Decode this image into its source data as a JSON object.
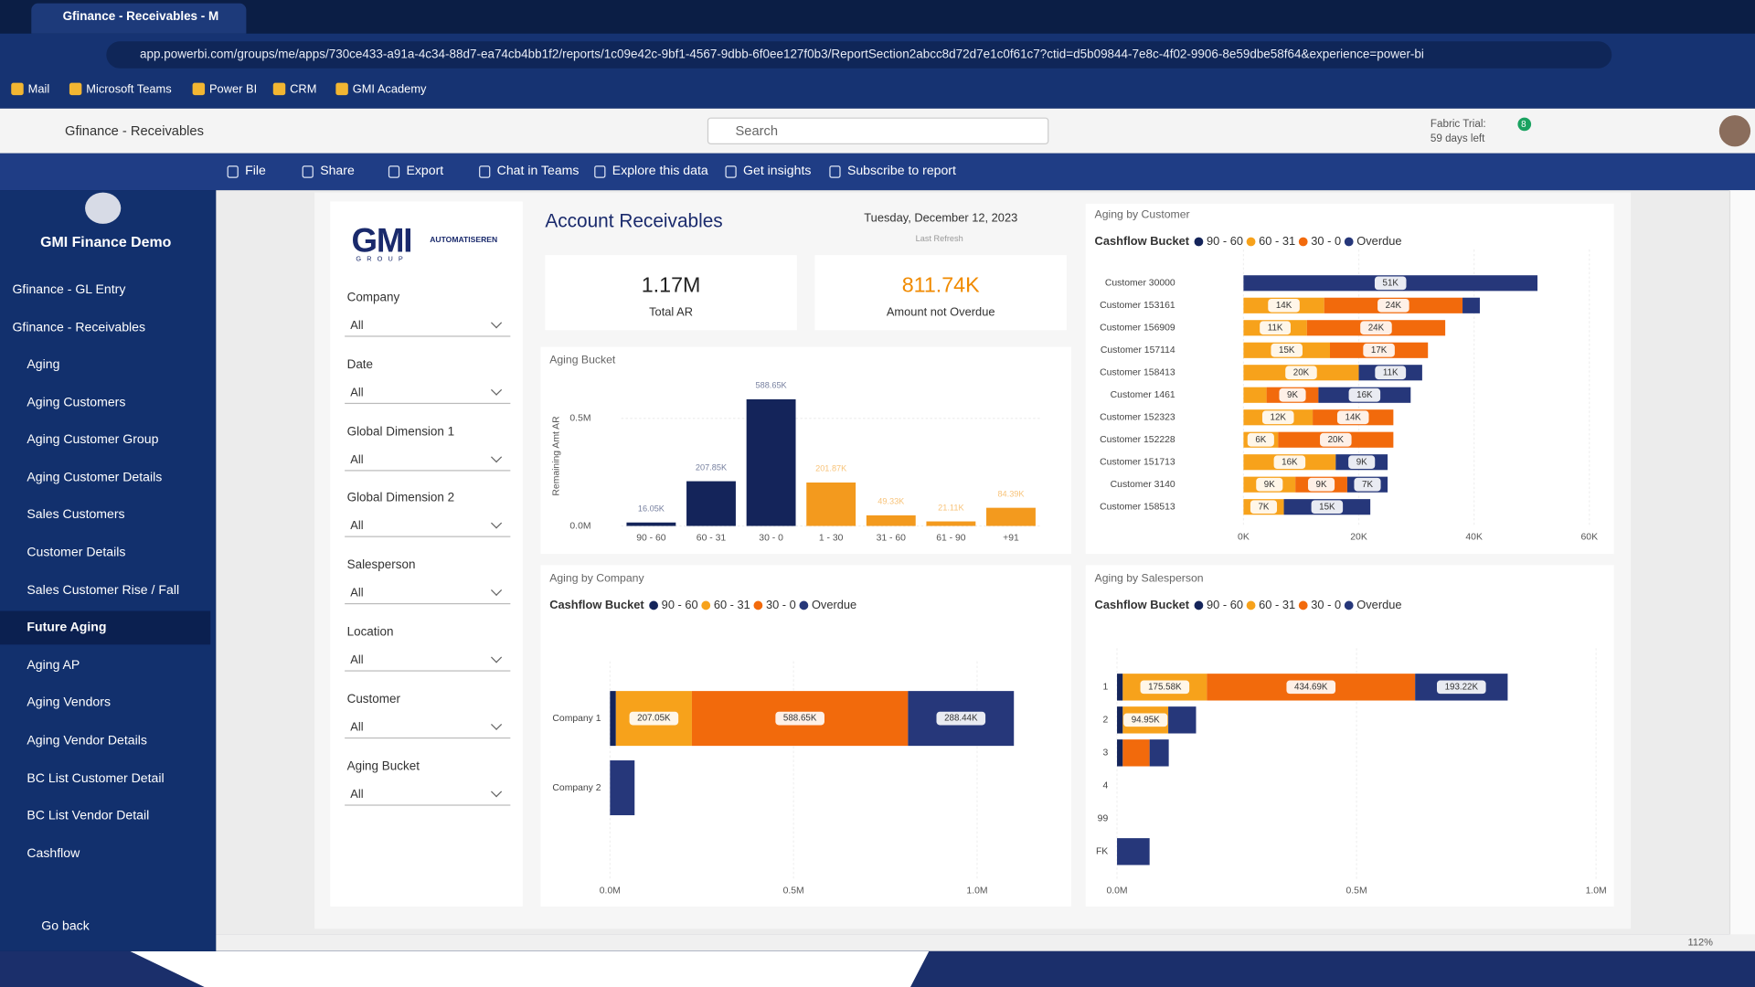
{
  "browser": {
    "tab_title": "Gfinance - Receivables - Multi",
    "url": "app.powerbi.com/groups/me/apps/730ce433-a91a-4c34-88d7-ea74cb4bb1f2/reports/1c09e42c-9bf1-4567-9dbb-6f0ee127f0b3/ReportSection2abcc8d72d7e1c0f61c7?ctid=d5b09844-7e8c-4f02-9906-8e59dbe58f64&experience=power-bi",
    "bookmarks": [
      "Mail",
      "Microsoft Teams",
      "Power BI",
      "CRM",
      "GMI Academy"
    ]
  },
  "app_bar": {
    "workspace": "Gfinance - Receivables",
    "search_placeholder": "Search",
    "trial_title": "Fabric Trial:",
    "trial_days": "59 days left",
    "notifications": "8"
  },
  "toolbar": [
    "File",
    "Share",
    "Export",
    "Chat in Teams",
    "Explore this data",
    "Get insights",
    "Subscribe to report"
  ],
  "nav": {
    "app_name": "GMI Finance Demo",
    "sections": [
      "Gfinance - GL Entry",
      "Gfinance - Receivables"
    ],
    "items": [
      {
        "label": "Aging"
      },
      {
        "label": "Aging Customers"
      },
      {
        "label": "Aging Customer Group"
      },
      {
        "label": "Aging Customer Details"
      },
      {
        "label": "Sales Customers"
      },
      {
        "label": "Customer Details"
      },
      {
        "label": "Sales Customer Rise / Fall"
      },
      {
        "label": "Future Aging",
        "active": true
      },
      {
        "label": "Aging AP"
      },
      {
        "label": "Aging Vendors"
      },
      {
        "label": "Aging Vendor Details"
      },
      {
        "label": "BC List Customer Detail"
      },
      {
        "label": "BC List Vendor Detail"
      },
      {
        "label": "Cashflow"
      }
    ],
    "back": "Go back"
  },
  "report": {
    "logo": "GMI",
    "logo_group": "GROUP",
    "logo_tagline": "AUTOMATISEREN",
    "title": "Account Receivables",
    "date": "Tuesday, December 12, 2023",
    "refresh": "Last Refresh",
    "filters": [
      {
        "label": "Company",
        "value": "All"
      },
      {
        "label": "Date",
        "value": "All"
      },
      {
        "label": "Global Dimension 1",
        "value": "All"
      },
      {
        "label": "Global Dimension 2",
        "value": "All"
      },
      {
        "label": "Salesperson",
        "value": "All"
      },
      {
        "label": "Location",
        "value": "All"
      },
      {
        "label": "Customer",
        "value": "All"
      },
      {
        "label": "Aging Bucket",
        "value": "All"
      }
    ],
    "kpis": [
      {
        "value": "1.17M",
        "label": "Total AR"
      },
      {
        "value": "811.74K",
        "label": "Amount not Overdue"
      }
    ],
    "charts": [
      {
        "type": "bar",
        "title": "Aging Bucket",
        "y_label": "Remaining Amt AR",
        "categories": [
          "90 - 60",
          "60 - 31",
          "30 - 0",
          "1 - 30",
          "31 - 60",
          "61 - 90",
          "+91"
        ],
        "values": [
          16050,
          207850,
          588650,
          201870,
          49330,
          21110,
          84390
        ],
        "value_labels": [
          "16.05K",
          "207.85K",
          "588.65K",
          "201.87K",
          "49.33K",
          "21.11K",
          "84.39K"
        ],
        "colors": [
          "#14245a",
          "#14245a",
          "#14245a",
          "#f39a1e",
          "#f39a1e",
          "#f39a1e",
          "#f39a1e"
        ],
        "ylim": [
          0,
          650000
        ],
        "yticks": [
          {
            "value": 0,
            "label": "0.0M"
          },
          {
            "value": 500000,
            "label": "0.5M"
          }
        ]
      },
      {
        "type": "stacked_bar_h",
        "title": "Aging by Customer",
        "legend_title": "Cashflow Bucket",
        "categories": [
          "Customer 30000",
          "Customer 153161",
          "Customer 156909",
          "Customer 157114",
          "Customer 158413",
          "Customer 1461",
          "Customer 152323",
          "Customer 152228",
          "Customer 151713",
          "Customer 3140",
          "Customer 158513"
        ],
        "series": [
          {
            "name": "90 - 60",
            "color": "#14245a",
            "values": [
              null,
              null,
              null,
              null,
              null,
              null,
              null,
              null,
              null,
              null,
              null
            ],
            "value_labels": [
              null,
              null,
              null,
              null,
              null,
              null,
              null,
              null,
              null,
              null,
              null
            ]
          },
          {
            "name": "60 - 31",
            "color": "#f7a21b",
            "values": [
              null,
              14000,
              11000,
              15000,
              20000,
              4000,
              12000,
              6000,
              16000,
              9000,
              7000
            ],
            "value_labels": [
              null,
              "14K",
              "11K",
              "15K",
              "20K",
              null,
              "12K",
              "6K",
              "16K",
              "9K",
              "7K"
            ]
          },
          {
            "name": "30 - 0",
            "color": "#f26a0c",
            "values": [
              null,
              24000,
              24000,
              17000,
              null,
              9000,
              14000,
              20000,
              null,
              9000,
              null
            ],
            "value_labels": [
              null,
              "24K",
              "24K",
              "17K",
              null,
              "9K",
              "14K",
              "20K",
              null,
              "9K",
              null
            ]
          },
          {
            "name": "Overdue",
            "color": "#26377a",
            "values": [
              51000,
              3000,
              null,
              null,
              11000,
              16000,
              null,
              null,
              9000,
              7000,
              15000
            ],
            "value_labels": [
              "51K",
              null,
              null,
              null,
              "11K",
              "16K",
              null,
              null,
              "9K",
              "7K",
              "15K"
            ]
          }
        ],
        "xlim": [
          0,
          60000
        ],
        "xticks": [
          {
            "value": 0,
            "label": "0K"
          },
          {
            "value": 20000,
            "label": "20K"
          },
          {
            "value": 40000,
            "label": "40K"
          },
          {
            "value": 60000,
            "label": "60K"
          }
        ]
      },
      {
        "type": "stacked_bar_h",
        "title": "Aging by Company",
        "legend_title": "Cashflow Bucket",
        "categories": [
          "Company 1",
          "Company 2"
        ],
        "series": [
          {
            "name": "90 - 60",
            "color": "#14245a",
            "values": [
              16050,
              null
            ],
            "value_labels": [
              null,
              null
            ]
          },
          {
            "name": "60 - 31",
            "color": "#f7a21b",
            "values": [
              207050,
              null
            ],
            "value_labels": [
              "207.05K",
              null
            ]
          },
          {
            "name": "30 - 0",
            "color": "#f26a0c",
            "values": [
              588650,
              null
            ],
            "value_labels": [
              "588.65K",
              null
            ]
          },
          {
            "name": "Overdue",
            "color": "#26377a",
            "values": [
              288440,
              67000
            ],
            "value_labels": [
              "288.44K",
              null
            ]
          }
        ],
        "xlim": [
          0,
          1200000
        ],
        "xticks": [
          {
            "value": 0,
            "label": "0.0M"
          },
          {
            "value": 500000,
            "label": "0.5M"
          },
          {
            "value": 1000000,
            "label": "1.0M"
          }
        ]
      },
      {
        "type": "stacked_bar_h",
        "title": "Aging by Salesperson",
        "legend_title": "Cashflow Bucket",
        "categories": [
          "1",
          "2",
          "3",
          "4",
          "99",
          "FK"
        ],
        "series": [
          {
            "name": "90 - 60",
            "color": "#14245a",
            "values": [
              12000,
              12000,
              12000,
              null,
              null,
              null
            ],
            "value_labels": [
              null,
              null,
              null,
              null,
              null,
              null
            ]
          },
          {
            "name": "60 - 31",
            "color": "#f7a21b",
            "values": [
              175580,
              94950,
              null,
              null,
              null,
              null
            ],
            "value_labels": [
              "175.58K",
              "94.95K",
              null,
              null,
              null,
              null
            ]
          },
          {
            "name": "30 - 0",
            "color": "#f26a0c",
            "values": [
              434690,
              null,
              56000,
              null,
              null,
              null
            ],
            "value_labels": [
              "434.69K",
              null,
              null,
              null,
              null,
              null
            ]
          },
          {
            "name": "Overdue",
            "color": "#26377a",
            "values": [
              193220,
              58000,
              40000,
              null,
              null,
              68000
            ],
            "value_labels": [
              "193.22K",
              null,
              null,
              null,
              null,
              null
            ]
          }
        ],
        "xlim": [
          0,
          1000000
        ],
        "xticks": [
          {
            "value": 0,
            "label": "0.0M"
          },
          {
            "value": 500000,
            "label": "0.5M"
          },
          {
            "value": 1000000,
            "label": "1.0M"
          }
        ]
      }
    ]
  },
  "footer": {
    "zoom": "112%"
  }
}
